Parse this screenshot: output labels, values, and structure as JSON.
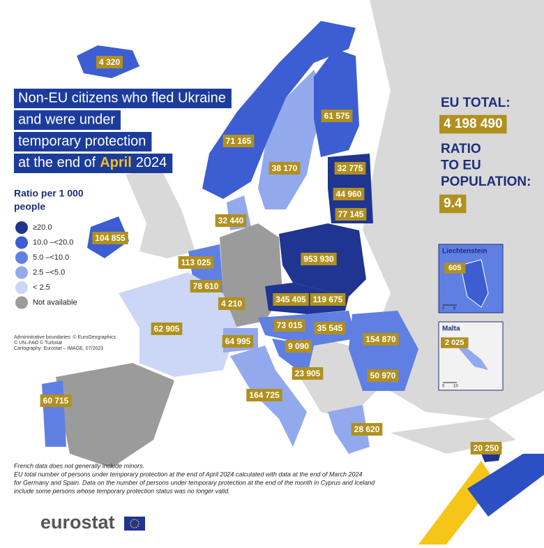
{
  "title": {
    "lines": [
      "Non-EU citizens who fled Ukraine",
      "and were under",
      "temporary protection"
    ],
    "last_line": {
      "prefix": "at the end of",
      "month": "April",
      "year": "2024"
    }
  },
  "legend": {
    "title": [
      "Ratio per 1 000",
      "people"
    ],
    "items": [
      {
        "label": "≥20.0",
        "color": "#1f3591"
      },
      {
        "label": "10.0 –<20.0",
        "color": "#3c5ed2"
      },
      {
        "label": "5.0 –<10.0",
        "color": "#5f7fe3"
      },
      {
        "label": "2.5 –<5.0",
        "color": "#93a9ee"
      },
      {
        "label": "< 2.5",
        "color": "#ccd6f6"
      },
      {
        "label": "Not available",
        "color": "#9b9b9b"
      }
    ]
  },
  "sources": [
    "Administrative boundaries: © EuroGeographics",
    "© UN–FAO © Turkstat",
    "Cartography: Eurostat – IMAGE, 07/2023"
  ],
  "eu_total": {
    "label": "EU TOTAL:",
    "value": "4 198 490"
  },
  "ratio": {
    "label": [
      "RATIO",
      "TO EU",
      "POPULATION:"
    ],
    "value": "9.4"
  },
  "map_labels": [
    "4 320",
    "71 165",
    "61 575",
    "38 170",
    "32 775",
    "44 960",
    "77 145",
    "32 440",
    "104 855",
    "953 930",
    "113 025",
    "78 610",
    "4 210",
    "345 405",
    "119 675",
    "62 905",
    "73 015",
    "35 545",
    "154 870",
    "64 995",
    "9 090",
    "23 905",
    "50 970",
    "60 715",
    "164 725",
    "28 620",
    "20 250"
  ],
  "insets": [
    {
      "name": "Liechtenstein",
      "value": "605",
      "scale": [
        "0",
        "5"
      ]
    },
    {
      "name": "Malta",
      "value": "2 025",
      "scale": [
        "0",
        "10"
      ]
    }
  ],
  "footnotes": [
    "French data does not generally include minors.",
    "EU total number of persons under temporary protection at the end of April 2024 calculated with data at the end of March 2024",
    "for Germany and Spain. Data on the number of persons under temporary protection at the end of the month in Cyprus and Iceland",
    "include some persons whose temporary protection status was no longer valid."
  ],
  "logo": "eurostat"
}
